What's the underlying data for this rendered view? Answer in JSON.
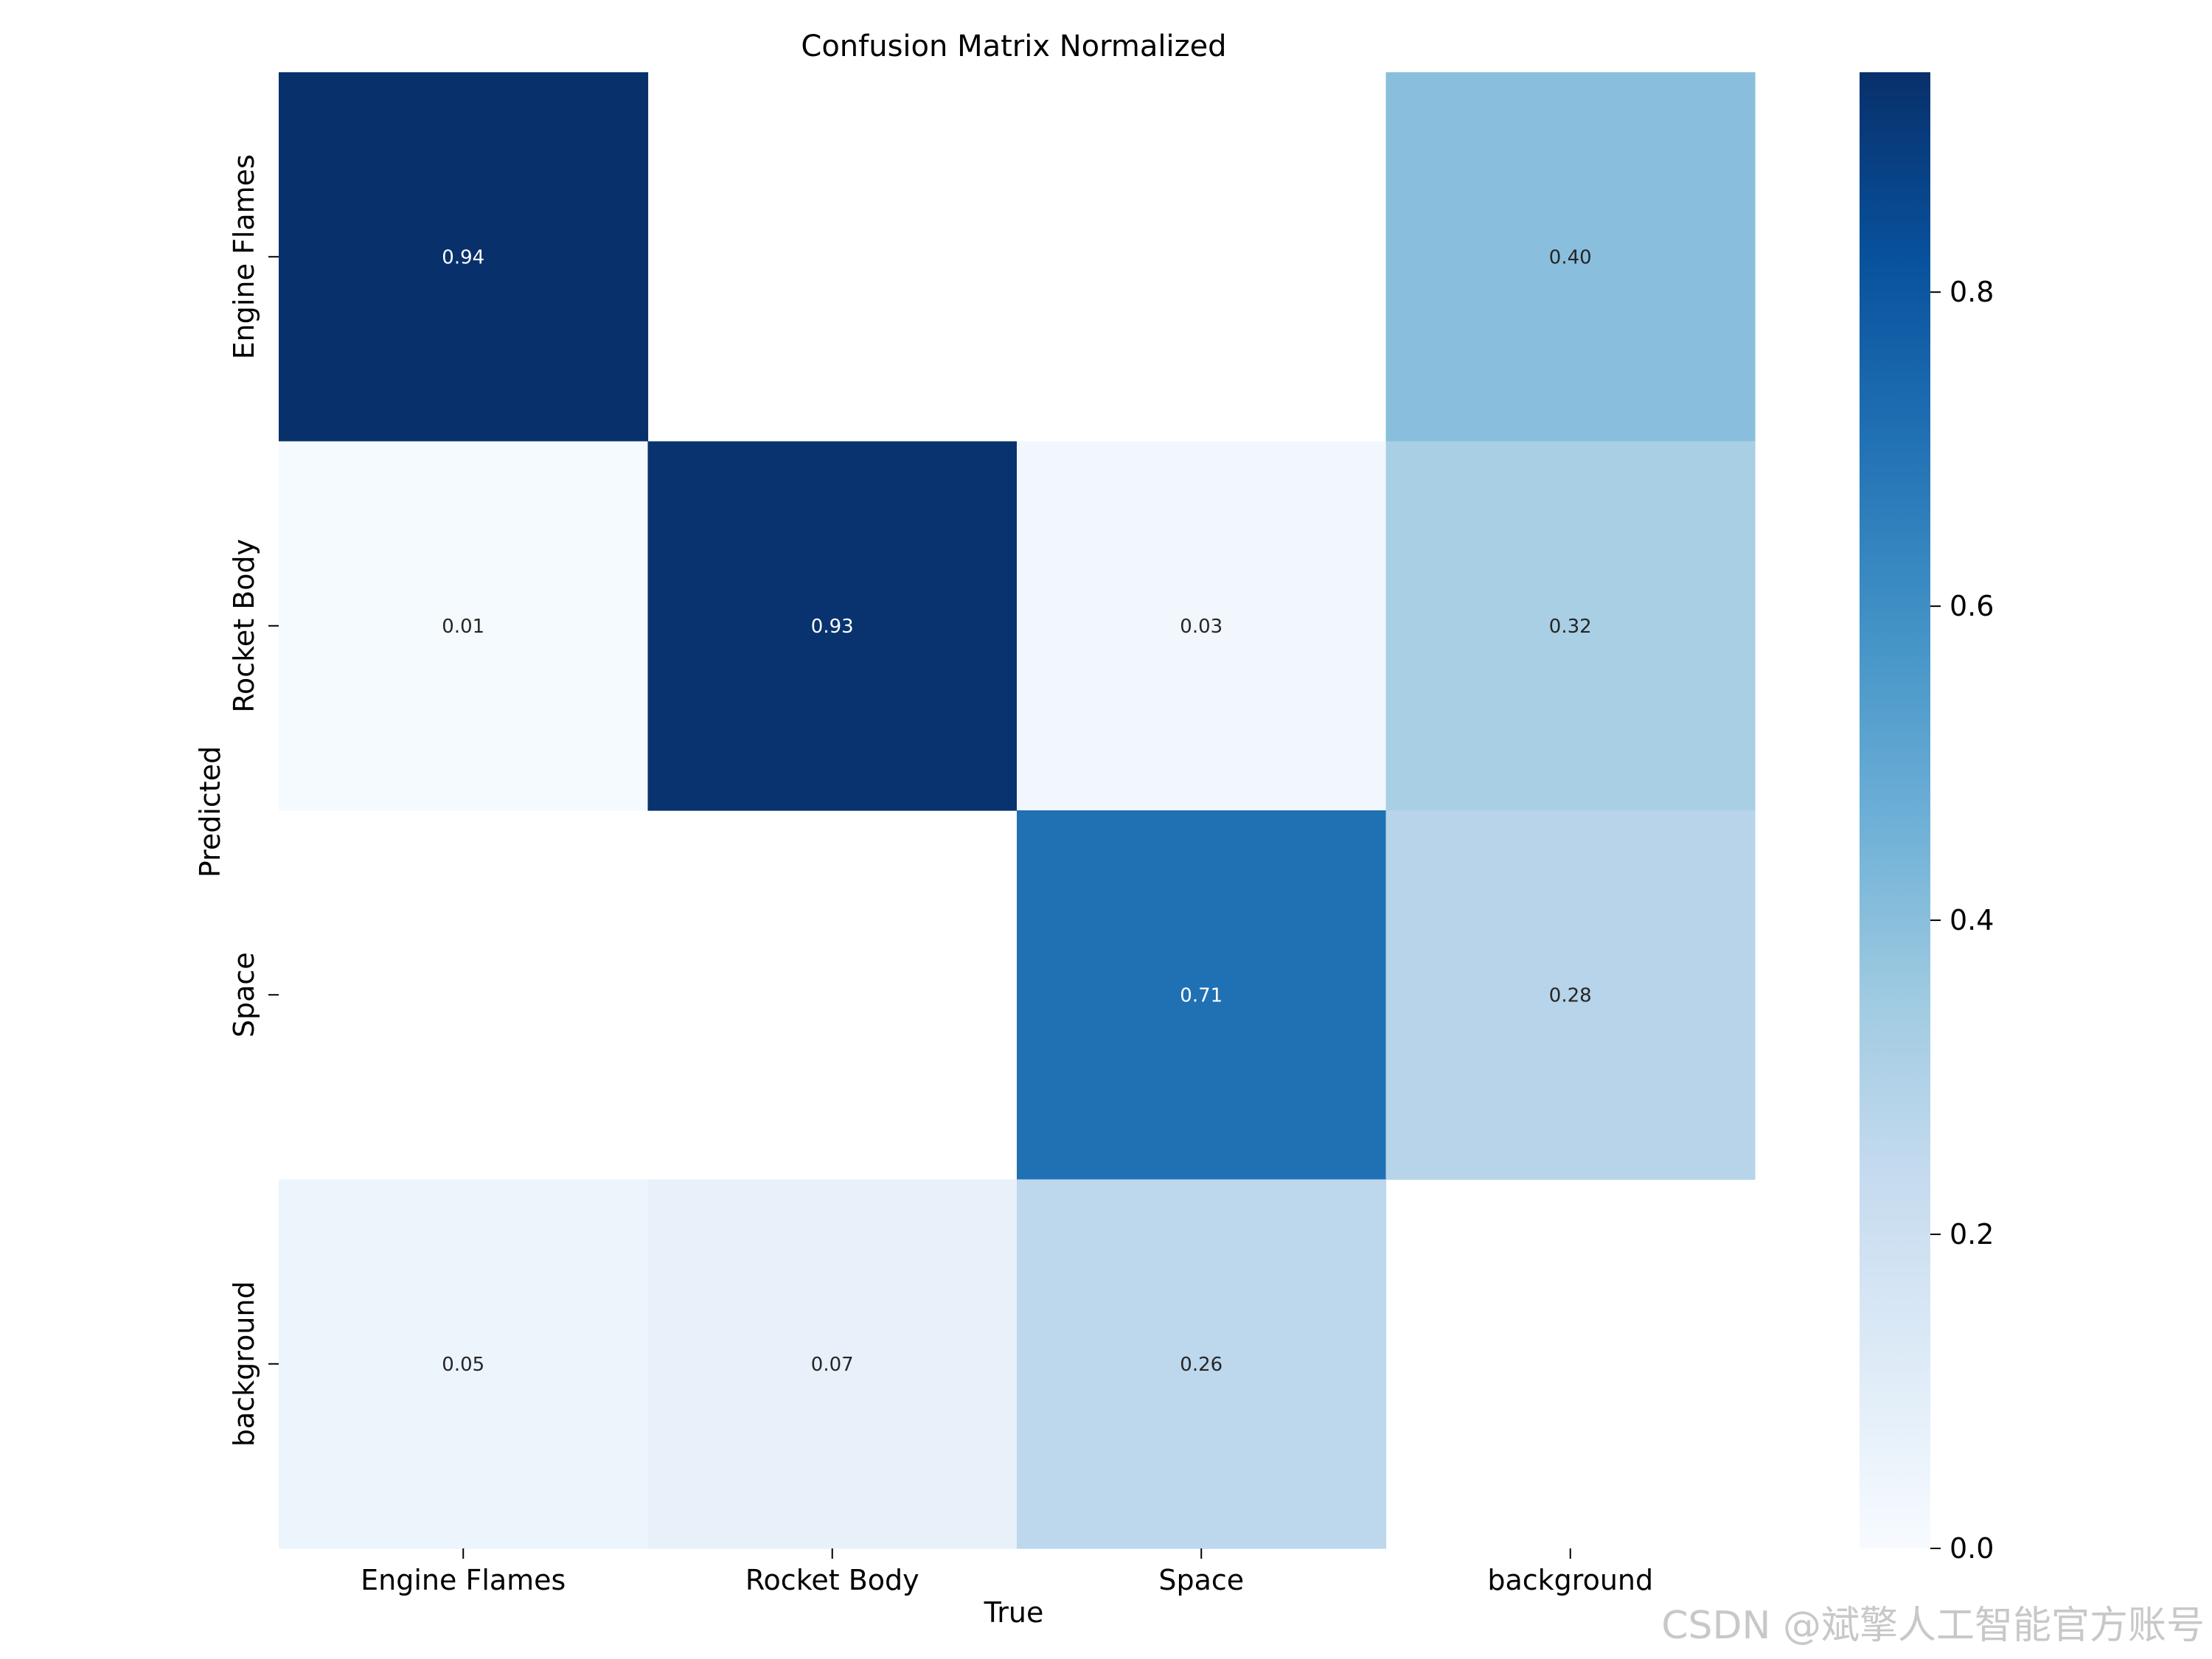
{
  "chart_data": {
    "type": "heatmap",
    "title": "Confusion Matrix Normalized",
    "xlabel": "True",
    "ylabel": "Predicted",
    "x_categories": [
      "Engine Flames",
      "Rocket Body",
      "Space",
      "background"
    ],
    "y_categories": [
      "Engine Flames",
      "Rocket Body",
      "Space",
      "background"
    ],
    "values": [
      [
        0.94,
        null,
        null,
        0.4
      ],
      [
        0.01,
        0.93,
        0.03,
        0.32
      ],
      [
        null,
        null,
        0.71,
        0.28
      ],
      [
        0.05,
        0.07,
        0.26,
        null
      ]
    ],
    "cell_labels": [
      [
        "0.94",
        "",
        "",
        "0.40"
      ],
      [
        "0.01",
        "0.93",
        "0.03",
        "0.32"
      ],
      [
        "",
        "",
        "0.71",
        "0.28"
      ],
      [
        "0.05",
        "0.07",
        "0.26",
        ""
      ]
    ],
    "colorbar": {
      "range": [
        0.0,
        0.94
      ],
      "ticks": [
        0.0,
        0.2,
        0.4,
        0.6,
        0.8
      ],
      "tick_labels": [
        "0.0",
        "0.2",
        "0.4",
        "0.6",
        "0.8"
      ],
      "colormap": "Blues"
    }
  },
  "watermark": "CSDN @斌擎人工智能官方账号"
}
